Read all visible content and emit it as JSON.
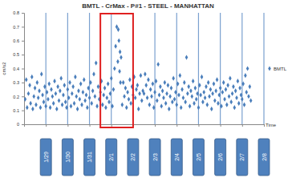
{
  "chart_data": {
    "type": "scatter",
    "title": "BMTL - CrMax - P#1 - STEEL - MANHATTAN",
    "y_label": "cm/s2",
    "x_label": "Time",
    "x": [
      -0.95,
      -0.9,
      -0.86,
      -0.8,
      -0.74,
      -0.7,
      -0.64,
      -0.6,
      -0.55,
      -0.5,
      -0.45,
      -0.4,
      -0.35,
      -0.3,
      -0.25,
      -0.2,
      -0.15,
      -0.1,
      -0.05,
      0.0,
      0.05,
      0.1,
      0.15,
      0.2,
      0.25,
      0.3,
      0.35,
      0.4,
      0.45,
      0.5,
      0.55,
      0.6,
      0.65,
      0.7,
      0.75,
      0.8,
      0.85,
      0.9,
      0.95,
      1.0,
      1.05,
      1.1,
      1.15,
      1.2,
      1.25,
      1.3,
      1.35,
      1.4,
      1.45,
      1.5,
      1.55,
      1.6,
      1.65,
      1.7,
      1.75,
      1.8,
      1.85,
      1.9,
      1.95,
      2.0,
      2.05,
      2.1,
      2.15,
      2.2,
      2.25,
      2.3,
      2.35,
      2.4,
      2.45,
      2.5,
      2.55,
      2.6,
      2.65,
      2.7,
      2.75,
      2.8,
      2.85,
      2.9,
      2.95,
      3.0,
      3.05,
      3.1,
      3.15,
      3.2,
      3.25,
      3.3,
      3.32,
      3.35,
      3.38,
      3.4,
      3.42,
      3.45,
      3.5,
      3.55,
      3.6,
      3.65,
      3.7,
      3.75,
      3.8,
      3.85,
      3.9,
      3.95,
      4.0,
      4.05,
      4.1,
      4.15,
      4.2,
      4.25,
      4.3,
      4.35,
      4.4,
      4.45,
      4.5,
      4.55,
      4.6,
      4.65,
      4.7,
      4.75,
      4.8,
      4.85,
      4.9,
      4.95,
      5.0,
      5.05,
      5.1,
      5.15,
      5.2,
      5.25,
      5.3,
      5.35,
      5.4,
      5.45,
      5.5,
      5.55,
      5.6,
      5.65,
      5.7,
      5.75,
      5.8,
      5.85,
      5.9,
      5.95,
      6.0,
      6.05,
      6.1,
      6.15,
      6.2,
      6.25,
      6.3,
      6.35,
      6.4,
      6.45,
      6.5,
      6.55,
      6.6,
      6.65,
      6.7,
      6.75,
      6.8,
      6.85,
      6.9,
      6.95,
      7.0,
      7.05,
      7.1,
      7.15,
      7.2,
      7.25,
      7.3,
      7.35,
      7.4,
      7.45,
      7.5,
      7.55,
      7.6,
      7.65,
      7.7,
      7.75,
      7.8,
      7.85,
      7.9,
      7.95,
      8.0,
      8.05,
      8.1,
      8.15,
      8.2,
      8.25,
      8.3,
      8.35,
      8.4,
      8.45,
      8.5,
      8.55,
      8.6,
      8.65,
      8.7,
      8.75,
      8.8,
      8.85,
      8.9,
      8.95,
      9.0,
      9.05,
      9.1,
      9.15,
      9.2,
      9.25,
      9.3,
      9.35,
      9.4
    ],
    "series": [
      {
        "name": "BMTL",
        "color": "#4a7ebb",
        "marker": "diamond",
        "values": [
          0.18,
          0.32,
          0.12,
          0.22,
          0.28,
          0.15,
          0.34,
          0.11,
          0.2,
          0.26,
          0.14,
          0.3,
          0.19,
          0.24,
          0.12,
          0.36,
          0.21,
          0.16,
          0.27,
          0.13,
          0.23,
          0.18,
          0.29,
          0.12,
          0.25,
          0.2,
          0.15,
          0.31,
          0.22,
          0.11,
          0.27,
          0.17,
          0.24,
          0.33,
          0.14,
          0.21,
          0.28,
          0.16,
          0.12,
          0.25,
          0.19,
          0.3,
          0.13,
          0.22,
          0.27,
          0.15,
          0.34,
          0.2,
          0.11,
          0.24,
          0.18,
          0.29,
          0.14,
          0.23,
          0.32,
          0.17,
          0.21,
          0.12,
          0.26,
          0.19,
          0.3,
          0.15,
          0.24,
          0.36,
          0.2,
          0.44,
          0.13,
          0.27,
          0.18,
          0.23,
          0.31,
          0.14,
          0.21,
          0.26,
          0.12,
          0.19,
          0.29,
          0.16,
          0.22,
          0.33,
          0.13,
          0.25,
          0.4,
          0.56,
          0.7,
          0.45,
          0.68,
          0.6,
          0.38,
          0.52,
          0.3,
          0.48,
          0.14,
          0.3,
          0.2,
          0.26,
          0.12,
          0.23,
          0.18,
          0.32,
          0.15,
          0.27,
          0.21,
          0.34,
          0.19,
          0.25,
          0.28,
          0.11,
          0.22,
          0.35,
          0.17,
          0.24,
          0.22,
          0.36,
          0.28,
          0.19,
          0.32,
          0.14,
          0.25,
          0.2,
          0.29,
          0.12,
          0.23,
          0.31,
          0.17,
          0.43,
          0.21,
          0.27,
          0.13,
          0.24,
          0.19,
          0.3,
          0.15,
          0.22,
          0.28,
          0.11,
          0.2,
          0.26,
          0.16,
          0.33,
          0.18,
          0.23,
          0.14,
          0.29,
          0.21,
          0.35,
          0.12,
          0.25,
          0.19,
          0.3,
          0.16,
          0.48,
          0.22,
          0.27,
          0.13,
          0.24,
          0.2,
          0.31,
          0.15,
          0.26,
          0.18,
          0.22,
          0.12,
          0.28,
          0.21,
          0.34,
          0.16,
          0.23,
          0.19,
          0.27,
          0.14,
          0.3,
          0.2,
          0.25,
          0.11,
          0.22,
          0.29,
          0.17,
          0.24,
          0.32,
          0.15,
          0.21,
          0.26,
          0.13,
          0.23,
          0.3,
          0.18,
          0.25,
          0.14,
          0.28,
          0.2,
          0.33,
          0.16,
          0.22,
          0.27,
          0.12,
          0.24,
          0.19,
          0.31,
          0.15,
          0.26,
          0.21,
          0.18,
          0.29,
          0.14,
          0.35,
          0.23,
          0.4,
          0.2,
          0.27,
          0.17
        ]
      }
    ],
    "xlim": [
      -1,
      10
    ],
    "xticks": [
      {
        "value": 0,
        "label": "1/29"
      },
      {
        "value": 1,
        "label": "1/30"
      },
      {
        "value": 2,
        "label": "1/31"
      },
      {
        "value": 3,
        "label": "2/1"
      },
      {
        "value": 4,
        "label": "2/2"
      },
      {
        "value": 5,
        "label": "2/3"
      },
      {
        "value": 6,
        "label": "2/4"
      },
      {
        "value": 7,
        "label": "2/5"
      },
      {
        "value": 8,
        "label": "2/6"
      },
      {
        "value": 9,
        "label": "2/7"
      },
      {
        "value": 10,
        "label": "2/8"
      }
    ],
    "ylim": [
      0,
      0.8
    ],
    "yticks": [
      0,
      0.1,
      0.2,
      0.3,
      0.4,
      0.5,
      0.6,
      0.7,
      0.8
    ],
    "grid": true,
    "legend": "right"
  }
}
